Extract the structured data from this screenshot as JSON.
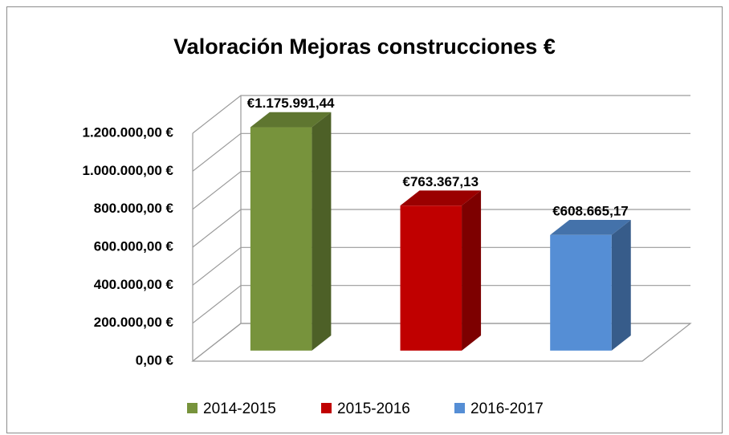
{
  "chart_data": {
    "type": "bar3d",
    "title": "Valoración Mejoras construcciones €",
    "series": [
      {
        "name": "2014-2015",
        "color": "#77933c",
        "values": [
          1175991.44
        ],
        "value_labels": [
          "€1.175.991,44"
        ]
      },
      {
        "name": "2015-2016",
        "color": "#c00000",
        "values": [
          763367.13
        ],
        "value_labels": [
          "€763.367,13"
        ]
      },
      {
        "name": "2016-2017",
        "color": "#558ed5",
        "values": [
          608665.17
        ],
        "value_labels": [
          "€608.665,17"
        ]
      }
    ],
    "ylim": [
      0,
      1200000
    ],
    "yticks": [
      {
        "value": 0,
        "label": "0,00 €"
      },
      {
        "value": 200000,
        "label": "200.000,00 €"
      },
      {
        "value": 400000,
        "label": "400.000,00 €"
      },
      {
        "value": 600000,
        "label": "600.000,00 €"
      },
      {
        "value": 800000,
        "label": "800.000,00 €"
      },
      {
        "value": 1000000,
        "label": "1.000.000,00 €"
      },
      {
        "value": 1200000,
        "label": "1.200.000,00 €"
      }
    ],
    "grid": true,
    "legend": "bottom"
  }
}
